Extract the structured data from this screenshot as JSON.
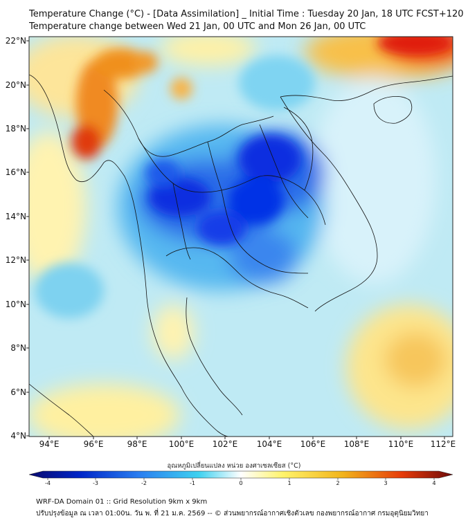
{
  "header": {
    "title_line1": "Temperature Change (°C) - [Data Assimilation] _ Initial Time : Tuesday 20 Jan, 18 UTC FCST+120",
    "title_line2": "Temperature change between Wed 21 Jan, 00 UTC and Mon 26 Jan, 00 UTC"
  },
  "map": {
    "lon_ticks": [
      "94°E",
      "96°E",
      "98°E",
      "100°E",
      "102°E",
      "104°E",
      "106°E",
      "108°E",
      "110°E",
      "112°E"
    ],
    "lat_ticks": [
      "22°N",
      "20°N",
      "18°N",
      "16°N",
      "14°N",
      "12°N",
      "10°N",
      "8°N",
      "6°N",
      "4°N"
    ]
  },
  "colorbar": {
    "title": "อุณหภูมิเปลี่ยนแปลง หน่วย องศาเซลเซียส (°C)",
    "ticks": [
      "-4",
      "-3",
      "-2",
      "-1",
      "0",
      "1",
      "2",
      "3",
      "4"
    ],
    "colors": {
      "neg4": "#0a0a6e",
      "neg3": "#0026c8",
      "neg2": "#2a7ef0",
      "neg1": "#3ed1f0",
      "zero": "#ffffff",
      "pos1": "#fff36a",
      "pos2": "#f2b41c",
      "pos3": "#e63b0a",
      "pos4": "#6e0a0a"
    }
  },
  "footer": {
    "line1": "WRF-DA Domain 01 :: Grid Resolution 9km x 9km",
    "line2": "ปรับปรุงข้อมูล ณ เวลา 01:00น. วัน พ. ที่ 21 ม.ค. 2569 -- © ส่วนพยากรณ์อากาศเชิงตัวเลข กองพยากรณ์อากาศ กรมอุตุนิยมวิทยา"
  }
}
